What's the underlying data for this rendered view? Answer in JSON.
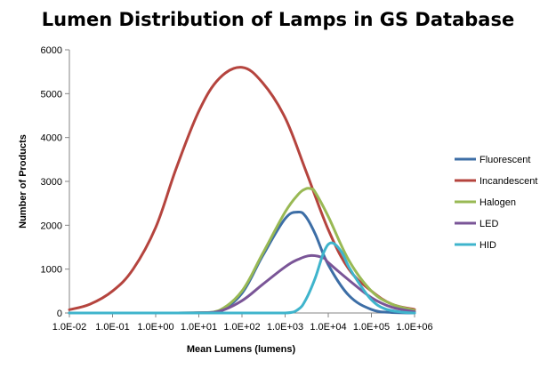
{
  "chart_data": {
    "type": "line",
    "title": "Lumen Distribution of Lamps in GS Database",
    "xlabel": "Mean Lumens (lumens)",
    "ylabel": "Number of Products",
    "xscale": "log",
    "x_ticks": [
      "1.0E-02",
      "1.0E-01",
      "1.0E+00",
      "1.0E+01",
      "1.0E+02",
      "1.0E+03",
      "1.0E+04",
      "1.0E+05",
      "1.0E+06"
    ],
    "y_ticks": [
      "0",
      "1000",
      "2000",
      "3000",
      "4000",
      "5000",
      "6000"
    ],
    "xlim": [
      0.01,
      1000000
    ],
    "ylim": [
      0,
      6000
    ],
    "grid": false,
    "legend_position": "right",
    "series": [
      {
        "name": "Fluorescent",
        "color": "#3d6ea6",
        "x": [
          0.01,
          1,
          10,
          30,
          100,
          300,
          1000,
          2000,
          3000,
          5000,
          10000,
          30000,
          100000,
          300000,
          1000000
        ],
        "values": [
          0,
          0,
          5,
          50,
          450,
          1300,
          2150,
          2300,
          2200,
          1800,
          1100,
          400,
          80,
          10,
          0
        ]
      },
      {
        "name": "Incandescent",
        "color": "#b5443e",
        "x": [
          0.01,
          0.03,
          0.1,
          0.3,
          1,
          3,
          10,
          30,
          100,
          300,
          1000,
          3000,
          10000,
          30000,
          100000,
          300000,
          1000000
        ],
        "values": [
          75,
          200,
          500,
          1000,
          1950,
          3300,
          4600,
          5350,
          5600,
          5250,
          4450,
          3250,
          1900,
          1000,
          500,
          200,
          80
        ]
      },
      {
        "name": "Halogen",
        "color": "#99b954",
        "x": [
          0.01,
          1,
          10,
          30,
          100,
          300,
          1000,
          2000,
          3000,
          4000,
          5000,
          10000,
          30000,
          100000,
          300000,
          1000000
        ],
        "values": [
          0,
          0,
          5,
          60,
          500,
          1350,
          2300,
          2700,
          2830,
          2830,
          2750,
          2200,
          1200,
          500,
          200,
          60
        ]
      },
      {
        "name": "LED",
        "color": "#7a5597",
        "x": [
          0.01,
          1,
          10,
          30,
          100,
          300,
          1000,
          2000,
          4000,
          8000,
          10000,
          30000,
          100000,
          300000,
          1000000
        ],
        "values": [
          0,
          0,
          5,
          40,
          280,
          650,
          1050,
          1220,
          1310,
          1250,
          1150,
          750,
          350,
          130,
          30
        ]
      },
      {
        "name": "HID",
        "color": "#3fb4cc",
        "x": [
          0.01,
          100,
          1000,
          2000,
          3000,
          5000,
          8000,
          12000,
          20000,
          30000,
          50000,
          100000,
          200000,
          500000,
          1000000
        ],
        "values": [
          0,
          0,
          0,
          80,
          300,
          800,
          1400,
          1600,
          1400,
          1050,
          700,
          300,
          100,
          20,
          0
        ]
      }
    ]
  }
}
